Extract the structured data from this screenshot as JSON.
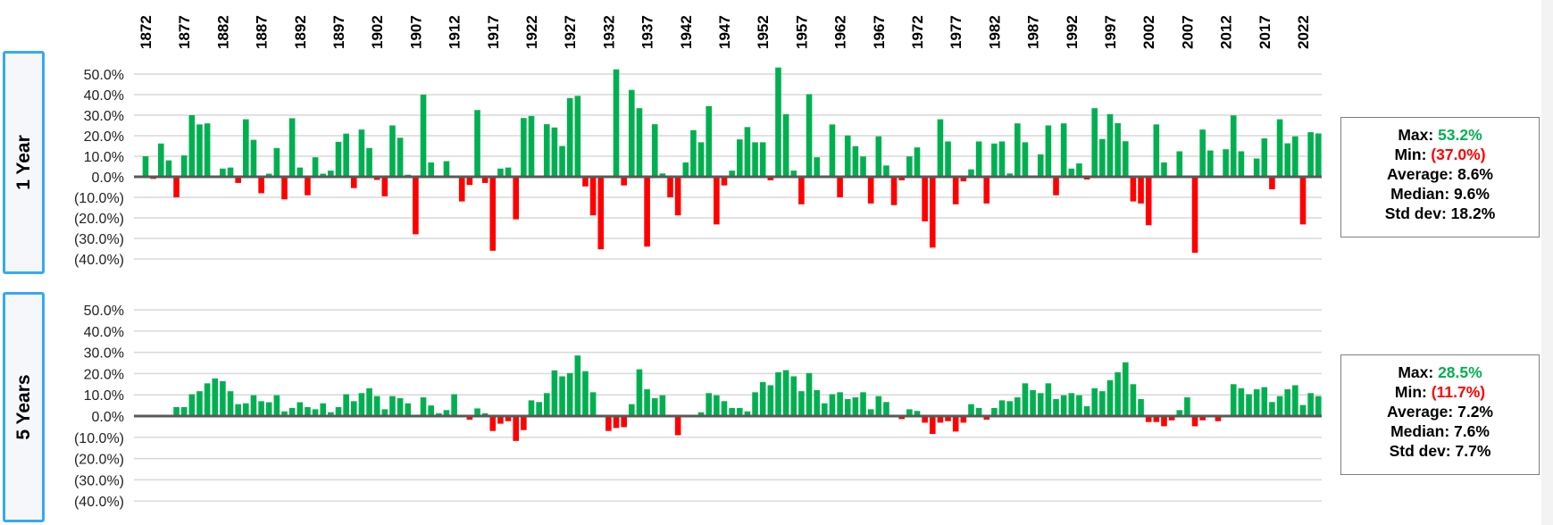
{
  "chart_data": [
    {
      "type": "bar",
      "title": "1 Year",
      "ylabel": "1 Year",
      "ylim": [
        -40,
        50
      ],
      "yticks": [
        "50.0%",
        "40.0%",
        "30.0%",
        "20.0%",
        "10.0%",
        "0.0%",
        "(10.0%)",
        "(20.0%)",
        "(30.0%)",
        "(40.0%)"
      ],
      "ytick_values": [
        50,
        40,
        30,
        20,
        10,
        0,
        -10,
        -20,
        -30,
        -40
      ],
      "grid": true,
      "x_start": 1872,
      "x_end": 2024,
      "xtick_labels": [
        "1872",
        "1877",
        "1882",
        "1887",
        "1892",
        "1897",
        "1902",
        "1907",
        "1912",
        "1917",
        "1922",
        "1927",
        "1932",
        "1937",
        "1942",
        "1947",
        "1952",
        "1957",
        "1962",
        "1967",
        "1972",
        "1977",
        "1982",
        "1987",
        "1992",
        "1997",
        "2002",
        "2007",
        "2012",
        "2017",
        "2022"
      ],
      "values": [
        10,
        -1,
        16.2,
        8,
        -10,
        10.4,
        30,
        25.5,
        26,
        0,
        4,
        4.5,
        -3,
        28,
        18,
        -8,
        1.5,
        14,
        -11,
        28.5,
        4.5,
        -9,
        9.5,
        1.5,
        3,
        17,
        21,
        -5.5,
        23,
        14,
        -1.5,
        -9.5,
        25,
        19,
        1,
        -28,
        40,
        7,
        0,
        7.6,
        0,
        -12,
        -4,
        32.5,
        -3,
        -36,
        4,
        4.5,
        -20.7,
        28.6,
        29.6,
        0,
        25.6,
        24,
        15,
        38.3,
        39.4,
        -4.7,
        -18.8,
        -35.3,
        0,
        52.3,
        -4.2,
        42.3,
        33.4,
        -34,
        25.6,
        1.6,
        -10,
        -18.8,
        7,
        22.7,
        16.8,
        34.4,
        -23.2,
        -4.2,
        3,
        18.2,
        24.2,
        16.8,
        16.8,
        -1.7,
        53.2,
        30.5,
        3,
        -13.4,
        40.2,
        9.5,
        0,
        25.5,
        -10,
        20.1,
        14.9,
        9.9,
        -13,
        19.7,
        5.5,
        -13.8,
        -1.7,
        9.9,
        14.3,
        -21.7,
        -34.5,
        28,
        17.2,
        -13.4,
        -2.2,
        3.6,
        17.2,
        -13,
        16.2,
        17.2,
        1.6,
        26,
        16.8,
        0,
        10.9,
        25,
        -9,
        26,
        4,
        6.5,
        -1.3,
        33.4,
        18.4,
        30.5,
        26.1,
        17.3,
        -12,
        -13,
        -23.6,
        25.5,
        7,
        0,
        12.4,
        0,
        -37,
        23,
        12.8,
        0,
        13.4,
        29.9,
        12.4,
        0,
        8.9,
        18.7,
        -6.1,
        28,
        16.3,
        19.7,
        -23.2,
        21.7,
        21.1
      ],
      "stats": {
        "max_label": "Max:",
        "max_value": "53.2%",
        "min_label": "Min:",
        "min_value": "(37.0%)",
        "average": "Average: 8.6%",
        "median": "Median: 9.6%",
        "std_dev": "Std dev: 18.2%"
      }
    },
    {
      "type": "bar",
      "title": "5 Years",
      "ylabel": "5 Years",
      "ylim": [
        -40,
        50
      ],
      "yticks": [
        "50.0%",
        "40.0%",
        "30.0%",
        "20.0%",
        "10.0%",
        "0.0%",
        "(10.0%)",
        "(20.0%)",
        "(30.0%)",
        "(40.0%)"
      ],
      "ytick_values": [
        50,
        40,
        30,
        20,
        10,
        0,
        -10,
        -20,
        -30,
        -40
      ],
      "grid": true,
      "x_start": 1872,
      "x_end": 2024,
      "values": [
        0,
        0,
        0,
        0,
        4.2,
        4.2,
        10.3,
        11.7,
        15.4,
        17.7,
        16.4,
        11.7,
        5.6,
        6,
        9.8,
        7,
        6.5,
        9.8,
        2.2,
        3.8,
        6.5,
        4.2,
        3.2,
        6,
        1.8,
        4.2,
        10.3,
        7,
        10.8,
        13.1,
        9.4,
        3.2,
        9.4,
        8.4,
        6,
        0,
        8.8,
        5,
        1.3,
        2.8,
        10.3,
        0,
        -1.7,
        3.6,
        1.3,
        -7,
        -3.6,
        -2.4,
        -11.7,
        -6.6,
        7.4,
        6.6,
        10.8,
        21.5,
        18.7,
        20.2,
        28.5,
        21.1,
        11.2,
        0,
        -7,
        -5.6,
        -5.2,
        5.6,
        22,
        12.6,
        8.4,
        9.8,
        0,
        -9,
        0,
        0,
        1.8,
        10.8,
        9.8,
        7,
        3.8,
        3.8,
        2.2,
        11.2,
        16,
        14.5,
        20.6,
        21.6,
        18.7,
        11.7,
        20.2,
        12.2,
        6,
        10.3,
        11.2,
        8,
        8.8,
        11.2,
        3.2,
        9.4,
        6.6,
        0,
        -1.4,
        3.2,
        2.4,
        -3.1,
        -8.4,
        -3.1,
        -2.4,
        -7.3,
        -3.1,
        5.6,
        3.8,
        -1.7,
        3.8,
        7.4,
        7,
        8.8,
        15.4,
        12.2,
        10.8,
        15.4,
        8,
        9.8,
        10.8,
        9.8,
        4.6,
        13.1,
        11.7,
        16.9,
        20.6,
        25.3,
        15,
        8,
        -2.8,
        -2.8,
        -4.8,
        -2,
        2.8,
        8.8,
        -4.8,
        -2,
        0,
        -2.4,
        0,
        15,
        13.1,
        10.3,
        12.6,
        13.6,
        6.6,
        9.4,
        12.6,
        14.5,
        5.2,
        10.8,
        9.4
      ],
      "stats": {
        "max_label": "Max:",
        "max_value": "28.5%",
        "min_label": "Min:",
        "min_value": "(11.7%)",
        "average": "Average: 7.2%",
        "median": "Median: 7.6%",
        "std_dev": "Std dev: 7.7%"
      }
    }
  ],
  "colors": {
    "positive": "#00b050",
    "negative": "#ff0000",
    "grid": "#d9d9d9",
    "zero_line": "#595959"
  }
}
